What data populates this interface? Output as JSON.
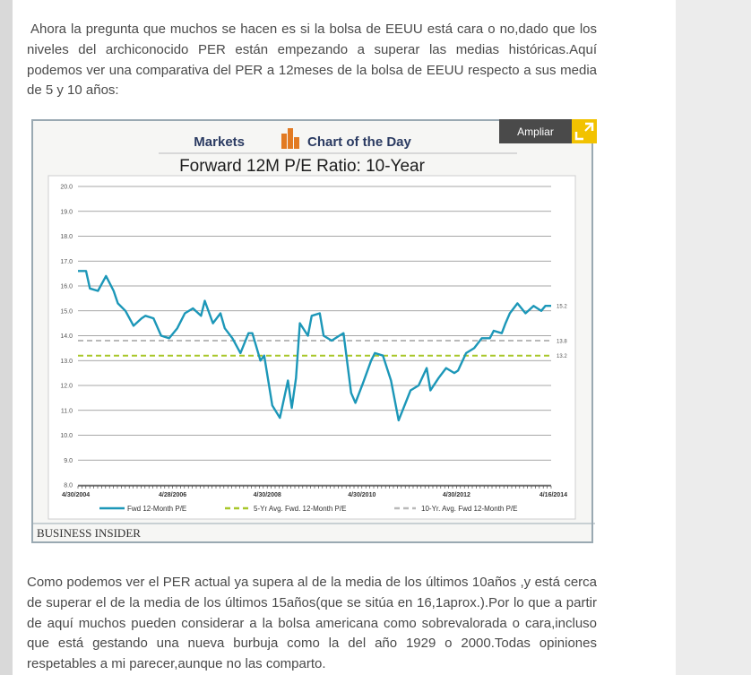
{
  "article": {
    "intro": "Ahora la pregunta que muchos se hacen es si la bolsa de EEUU está cara o no,dado que los niveles del archiconocido PER están empezando a superar las medias históricas.Aquí podemos ver una comparativa del PER a 12meses de la bolsa de EEUU respecto a sus media de 5 y 10 años:",
    "conclusion": "Como podemos ver el PER actual ya supera al de la media de los últimos 10años ,y está cerca de superar el de la media de los últimos 15años(que se sitúa en 16,1aprox.).Por lo que a partir de aquí muchos pueden considerar a la bolsa americana como sobrevalorada o cara,incluso que está gestando una nueva burbuja como la del año 1929 o 2000.Todas opiniones respetables a mi parecer,aunque no las comparto."
  },
  "zoom_button": {
    "label": "Ampliar",
    "icon": "expand-icon",
    "color": "#f2c200"
  },
  "figure": {
    "header_left": "Markets",
    "header_right": "Chart of the Day",
    "logo_icon": "bar-chart-logo-icon",
    "source": "BUSINESS INSIDER",
    "colors": {
      "line": "#1c97b8",
      "avg5": "#a8c72a",
      "avg10": "#b9b9b9",
      "accent": "#e27a22"
    }
  },
  "chart_data": {
    "type": "line",
    "title": "Forward 12M P/E Ratio: 10-Year",
    "ylim": [
      8,
      20
    ],
    "yticks": [
      "20.0",
      "19.0",
      "18.0",
      "17.0",
      "16.0",
      "15.0",
      "14.0",
      "13.0",
      "12.0",
      "11.0",
      "10.0",
      "9.0",
      "8.0"
    ],
    "xticks": [
      "4/30/2004",
      "4/28/2006",
      "4/30/2008",
      "4/30/2010",
      "4/30/2012",
      "4/16/2014"
    ],
    "xlim": [
      2004.33,
      2014.29
    ],
    "grid": true,
    "legend_position": "bottom",
    "series": [
      {
        "name": "Fwd 12-Month P/E",
        "x": [
          2004.33,
          2004.5,
          2004.58,
          2004.75,
          2004.92,
          2005.08,
          2005.17,
          2005.33,
          2005.5,
          2005.67,
          2005.75,
          2005.92,
          2006.08,
          2006.25,
          2006.42,
          2006.5,
          2006.58,
          2006.75,
          2006.92,
          2007.0,
          2007.17,
          2007.33,
          2007.42,
          2007.58,
          2007.75,
          2007.92,
          2008.0,
          2008.17,
          2008.25,
          2008.42,
          2008.58,
          2008.75,
          2008.83,
          2008.92,
          2009.0,
          2009.17,
          2009.25,
          2009.42,
          2009.5,
          2009.67,
          2009.83,
          2009.92,
          2010.08,
          2010.17,
          2010.33,
          2010.5,
          2010.58,
          2010.75,
          2010.92,
          2011.08,
          2011.33,
          2011.5,
          2011.67,
          2011.75,
          2011.92,
          2012.08,
          2012.25,
          2012.33,
          2012.5,
          2012.67,
          2012.83,
          2013.0,
          2013.08,
          2013.25,
          2013.33,
          2013.42,
          2013.58,
          2013.75,
          2013.92,
          2014.08,
          2014.17,
          2014.29
        ],
        "values": [
          16.6,
          16.6,
          15.9,
          15.8,
          16.4,
          15.8,
          15.3,
          15.0,
          14.4,
          14.7,
          14.8,
          14.7,
          14.0,
          13.9,
          14.3,
          14.6,
          14.9,
          15.1,
          14.8,
          15.4,
          14.5,
          14.9,
          14.3,
          13.9,
          13.3,
          14.1,
          14.1,
          13.0,
          13.2,
          11.2,
          10.7,
          12.2,
          11.1,
          12.3,
          14.5,
          14.0,
          14.8,
          14.9,
          14.0,
          13.8,
          14.0,
          14.1,
          11.7,
          11.3,
          12.1,
          13.0,
          13.3,
          13.2,
          12.2,
          10.6,
          11.8,
          12.0,
          12.7,
          11.8,
          12.3,
          12.7,
          12.5,
          12.6,
          13.3,
          13.5,
          13.9,
          13.9,
          14.2,
          14.1,
          14.5,
          14.9,
          15.3,
          14.9,
          15.2,
          15.0,
          15.2,
          15.2
        ]
      },
      {
        "name": "5-Yr Avg. Fwd. 12-Month P/E",
        "constant": 13.2,
        "label": "13.2"
      },
      {
        "name": "10-Yr. Avg. Fwd 12-Month P/E",
        "constant": 13.8,
        "label": "13.8"
      }
    ],
    "end_label": "15.2"
  }
}
